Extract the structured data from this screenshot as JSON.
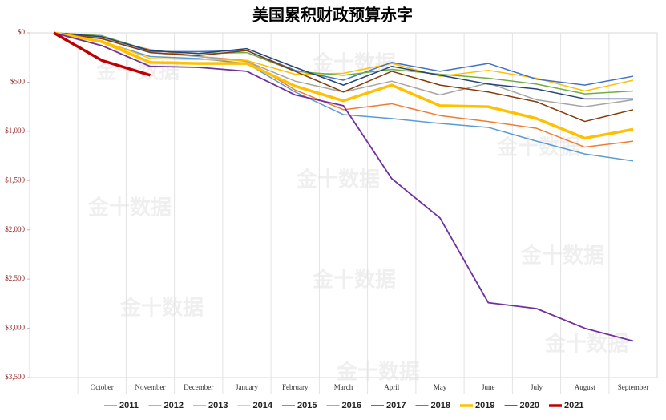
{
  "chart_data": {
    "type": "line",
    "title": "美国累积财政预算赤字",
    "watermark": "金十数据",
    "categories": [
      null,
      "October",
      "November",
      "December",
      "January",
      "February",
      "March",
      "April",
      "May",
      "June",
      "July",
      "August",
      "September"
    ],
    "ylim": [
      0,
      3500
    ],
    "inverted": true,
    "yticks": [
      {
        "value": 0,
        "label": "$0"
      },
      {
        "value": 500,
        "label": "$500"
      },
      {
        "value": 1000,
        "label": "$1,000"
      },
      {
        "value": 1500,
        "label": "$1,500"
      },
      {
        "value": 2000,
        "label": "$2,000"
      },
      {
        "value": 2500,
        "label": "$2,500"
      },
      {
        "value": 3000,
        "label": "$3,000"
      },
      {
        "value": 3500,
        "label": "$3,500"
      }
    ],
    "series": [
      {
        "name": "2011",
        "color": "#5b9bd5",
        "width": 1.5,
        "values": [
          0,
          90,
          240,
          260,
          310,
          600,
          830,
          870,
          920,
          960,
          1100,
          1230,
          1300
        ]
      },
      {
        "name": "2012",
        "color": "#ed7d31",
        "width": 1.5,
        "values": [
          0,
          60,
          170,
          240,
          280,
          580,
          780,
          720,
          840,
          900,
          970,
          1160,
          1100
        ]
      },
      {
        "name": "2013",
        "color": "#a5a5a5",
        "width": 1.5,
        "values": [
          0,
          50,
          200,
          240,
          290,
          490,
          600,
          490,
          630,
          510,
          680,
          750,
          680
        ]
      },
      {
        "name": "2014",
        "color": "#ffc000",
        "width": 1.5,
        "values": [
          0,
          80,
          260,
          270,
          280,
          420,
          410,
          310,
          440,
          380,
          460,
          590,
          480
        ]
      },
      {
        "name": "2015",
        "color": "#4472c4",
        "width": 1.5,
        "values": [
          0,
          30,
          190,
          190,
          180,
          380,
          480,
          300,
          390,
          310,
          470,
          530,
          440
        ]
      },
      {
        "name": "2016",
        "color": "#70ad47",
        "width": 1.5,
        "values": [
          0,
          30,
          180,
          210,
          200,
          390,
          430,
          370,
          420,
          460,
          520,
          620,
          590
        ]
      },
      {
        "name": "2017",
        "color": "#264478",
        "width": 1.5,
        "values": [
          0,
          40,
          180,
          210,
          160,
          350,
          530,
          340,
          430,
          520,
          570,
          670,
          670
        ]
      },
      {
        "name": "2018",
        "color": "#843c0c",
        "width": 1.5,
        "values": [
          0,
          60,
          200,
          230,
          180,
          390,
          600,
          390,
          530,
          600,
          700,
          900,
          780
        ]
      },
      {
        "name": "2019",
        "color": "#ffc000",
        "width": 3.5,
        "values": [
          0,
          90,
          300,
          310,
          310,
          540,
          690,
          530,
          740,
          750,
          870,
          1070,
          980
        ]
      },
      {
        "name": "2020",
        "color": "#7030a0",
        "width": 1.8,
        "values": [
          0,
          130,
          340,
          350,
          390,
          630,
          740,
          1480,
          1880,
          2740,
          2800,
          3000,
          3130
        ]
      },
      {
        "name": "2021",
        "color": "#c00000",
        "width": 3.5,
        "values": [
          0,
          280,
          430,
          null,
          null,
          null,
          null,
          null,
          null,
          null,
          null,
          null,
          null
        ]
      }
    ]
  }
}
